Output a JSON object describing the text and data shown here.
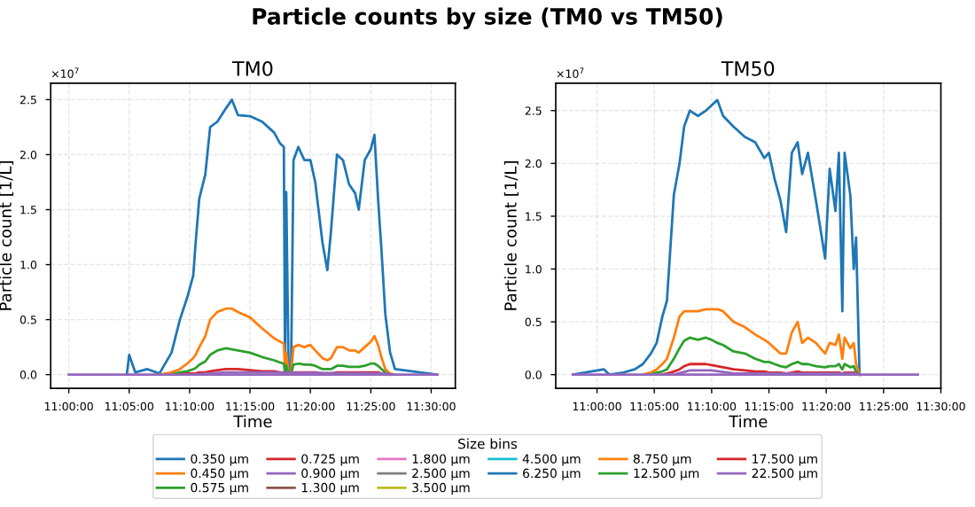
{
  "chart_data": [
    {
      "type": "line",
      "title": "TM0",
      "xlabel": "Time",
      "ylabel": "Particle count [1/L]",
      "legend_title": "Size bins",
      "legend": "bottom",
      "grid": true,
      "annotations": [
        "Particle counts by size (TM0 vs TM50)",
        "×10$^{7}$"
      ],
      "x": [
        11.08,
        11.0833,
        11.0917,
        11.1083,
        11.125,
        11.1417,
        11.1533,
        11.1633,
        11.1717,
        11.175,
        11.18,
        11.1883,
        11.195,
        11.205,
        11.2167,
        11.225,
        11.2333,
        11.25,
        11.2667,
        11.2833,
        11.2917,
        11.2967,
        11.2983,
        11.3,
        11.3033,
        11.3067,
        11.31,
        11.3167,
        11.325,
        11.3333,
        11.34,
        11.35,
        11.3567,
        11.3617,
        11.37,
        11.3783,
        11.3867,
        11.395,
        11.4,
        11.4083,
        11.4167,
        11.4217,
        11.4267,
        11.4317,
        11.4367,
        11.4433,
        11.45,
        11.5083
      ],
      "xlim": [
        10.975,
        11.5333
      ],
      "ylim": [
        -0.125,
        2.65
      ],
      "xticks": [
        {
          "value": 11.0,
          "label": "11:00:00"
        },
        {
          "value": 11.0833,
          "label": "11:05:00"
        },
        {
          "value": 11.1667,
          "label": "11:10:00"
        },
        {
          "value": 11.25,
          "label": "11:15:00"
        },
        {
          "value": 11.3333,
          "label": "11:20:00"
        },
        {
          "value": 11.4167,
          "label": "11:25:00"
        },
        {
          "value": 11.5,
          "label": "11:30:00"
        }
      ],
      "yticks": [
        {
          "value": 0,
          "label": "0.0"
        },
        {
          "value": 0.5,
          "label": "0.5"
        },
        {
          "value": 1,
          "label": "1.0"
        },
        {
          "value": 1.5,
          "label": "1.5"
        },
        {
          "value": 2,
          "label": "2.0"
        },
        {
          "value": 2.5,
          "label": "2.5"
        }
      ],
      "series": [
        {
          "name": "0.350 µm",
          "color": "#1f77b4",
          "values": [
            0,
            0.18,
            0.02,
            0.05,
            0.01,
            0.2,
            0.5,
            0.7,
            0.9,
            1.2,
            1.6,
            1.82,
            2.25,
            2.3,
            2.42,
            2.5,
            2.36,
            2.35,
            2.3,
            2.2,
            2.1,
            2.07,
            0.1,
            1.66,
            0,
            0.05,
            1.95,
            2.07,
            1.95,
            1.95,
            1.75,
            1.2,
            0.95,
            1.3,
            2.0,
            1.95,
            1.73,
            1.65,
            1.5,
            1.95,
            2.05,
            2.18,
            1.6,
            1.1,
            0.55,
            0.2,
            0.05,
            0
          ]
        },
        {
          "name": "0.450 µm",
          "color": "#ff7f0e",
          "values": [
            null,
            null,
            null,
            null,
            0,
            0.02,
            0.05,
            0.1,
            0.15,
            0.18,
            0.25,
            0.35,
            0.5,
            0.57,
            0.6,
            0.6,
            0.57,
            0.52,
            0.42,
            0.33,
            0.3,
            0.28,
            0.05,
            0.2,
            0,
            0.02,
            0.25,
            0.27,
            0.25,
            0.27,
            0.22,
            0.15,
            0.13,
            0.15,
            0.25,
            0.25,
            0.22,
            0.22,
            0.2,
            0.25,
            0.3,
            0.35,
            0.27,
            0.15,
            0.05,
            0.01,
            0,
            null
          ]
        },
        {
          "name": "0.575 µm",
          "color": "#2ca02c",
          "values": [
            null,
            null,
            null,
            null,
            null,
            0,
            0.02,
            0.03,
            0.05,
            0.06,
            0.09,
            0.12,
            0.18,
            0.22,
            0.24,
            0.23,
            0.22,
            0.2,
            0.16,
            0.13,
            0.11,
            0.1,
            0.02,
            0.08,
            0,
            0.01,
            0.09,
            0.1,
            0.09,
            0.09,
            0.08,
            0.05,
            0.05,
            0.05,
            0.08,
            0.08,
            0.07,
            0.07,
            0.07,
            0.08,
            0.1,
            0.1,
            0.08,
            0.05,
            0.02,
            0,
            null,
            null
          ]
        },
        {
          "name": "0.725 µm",
          "color": "#d62728",
          "values": [
            null,
            null,
            null,
            null,
            null,
            null,
            0,
            0.01,
            0.01,
            0.01,
            0.02,
            0.02,
            0.03,
            0.04,
            0.05,
            0.05,
            0.05,
            0.04,
            0.03,
            0.03,
            0.02,
            0.02,
            0,
            0.01,
            0,
            0,
            0.02,
            0.02,
            0.02,
            0.02,
            0.02,
            0.01,
            0.01,
            0.01,
            0.02,
            0.02,
            0.02,
            0.02,
            0.02,
            0.02,
            0.02,
            0.02,
            0.02,
            0.01,
            0,
            null,
            null,
            null
          ]
        },
        {
          "name": "0.900 µm",
          "color": "#9467bd",
          "x": [
            11.1717,
            11.2167,
            11.2667,
            11.4367,
            11.4433
          ],
          "values": [
            0,
            0.02,
            0.02,
            0.01,
            0
          ]
        },
        {
          "name": "1.300 µm",
          "color": "#8c564b",
          "values": [
            null,
            null,
            null,
            null,
            null,
            null,
            null,
            null,
            null,
            null,
            null,
            null,
            null,
            null,
            null,
            null,
            null,
            null,
            null,
            null,
            null,
            null,
            null,
            null,
            null,
            null,
            null,
            null,
            null,
            null,
            null,
            null,
            null,
            null,
            null,
            null,
            null,
            null,
            null,
            null,
            null,
            null,
            null,
            null,
            null,
            null,
            null,
            null
          ]
        },
        {
          "name": "1.800 µm",
          "color": "#e377c2",
          "values": [
            null,
            null,
            null,
            null,
            null,
            null,
            null,
            null,
            null,
            null,
            null,
            null,
            null,
            null,
            null,
            null,
            null,
            null,
            null,
            null,
            null,
            null,
            null,
            null,
            null,
            null,
            null,
            null,
            null,
            null,
            null,
            null,
            null,
            null,
            null,
            null,
            null,
            null,
            null,
            null,
            null,
            null,
            null,
            null,
            null,
            null,
            null,
            null
          ]
        },
        {
          "name": "2.500 µm",
          "color": "#7f7f7f",
          "values": [
            null,
            null,
            null,
            null,
            null,
            null,
            null,
            null,
            null,
            null,
            null,
            null,
            null,
            null,
            null,
            null,
            null,
            null,
            null,
            null,
            null,
            null,
            null,
            null,
            null,
            null,
            null,
            null,
            null,
            null,
            null,
            null,
            null,
            null,
            null,
            null,
            null,
            null,
            null,
            null,
            null,
            null,
            null,
            null,
            null,
            null,
            null,
            null
          ]
        },
        {
          "name": "3.500 µm",
          "color": "#bcbd22",
          "values": [
            null,
            null,
            null,
            null,
            null,
            null,
            null,
            null,
            null,
            null,
            null,
            null,
            null,
            null,
            null,
            null,
            null,
            null,
            null,
            null,
            null,
            null,
            null,
            null,
            null,
            null,
            null,
            null,
            null,
            null,
            null,
            null,
            null,
            null,
            null,
            null,
            null,
            null,
            null,
            null,
            null,
            null,
            null,
            null,
            null,
            null,
            null,
            null
          ]
        },
        {
          "name": "4.500 µm",
          "color": "#17becf",
          "values": [
            null,
            null,
            null,
            null,
            null,
            null,
            null,
            null,
            null,
            null,
            null,
            null,
            null,
            null,
            null,
            null,
            null,
            null,
            null,
            null,
            null,
            null,
            null,
            null,
            null,
            null,
            null,
            null,
            null,
            null,
            null,
            null,
            null,
            null,
            null,
            null,
            null,
            null,
            null,
            null,
            null,
            null,
            null,
            null,
            null,
            null,
            null,
            null
          ]
        },
        {
          "name": "6.250 µm",
          "color": "#1f77b4",
          "values": [
            null,
            null,
            null,
            null,
            null,
            null,
            null,
            null,
            null,
            null,
            null,
            null,
            null,
            null,
            null,
            null,
            null,
            null,
            null,
            null,
            null,
            null,
            null,
            null,
            null,
            null,
            null,
            null,
            null,
            null,
            null,
            null,
            null,
            null,
            null,
            null,
            null,
            null,
            null,
            null,
            null,
            null,
            null,
            null,
            null,
            null,
            null,
            null
          ]
        },
        {
          "name": "8.750 µm",
          "color": "#ff7f0e",
          "values": [
            null,
            null,
            null,
            null,
            null,
            null,
            null,
            null,
            null,
            null,
            null,
            null,
            null,
            null,
            null,
            null,
            null,
            null,
            null,
            null,
            null,
            null,
            null,
            null,
            null,
            null,
            null,
            null,
            null,
            null,
            null,
            null,
            null,
            null,
            null,
            null,
            null,
            null,
            null,
            null,
            null,
            null,
            null,
            null,
            null,
            null,
            null,
            null
          ]
        },
        {
          "name": "12.500 µm",
          "color": "#2ca02c",
          "values": [
            null,
            null,
            null,
            null,
            null,
            null,
            null,
            null,
            null,
            null,
            null,
            null,
            null,
            null,
            null,
            null,
            null,
            null,
            null,
            null,
            null,
            null,
            null,
            null,
            null,
            null,
            null,
            null,
            null,
            null,
            null,
            null,
            null,
            null,
            null,
            null,
            null,
            null,
            null,
            null,
            null,
            null,
            null,
            null,
            null,
            null,
            null,
            null
          ]
        },
        {
          "name": "17.500 µm",
          "color": "#d62728",
          "values": [
            null,
            null,
            null,
            null,
            null,
            null,
            null,
            null,
            null,
            null,
            null,
            null,
            null,
            null,
            null,
            null,
            null,
            null,
            null,
            null,
            null,
            null,
            null,
            null,
            null,
            null,
            null,
            null,
            null,
            null,
            null,
            null,
            null,
            null,
            null,
            null,
            null,
            null,
            null,
            null,
            null,
            null,
            null,
            null,
            null,
            null,
            null,
            null
          ]
        },
        {
          "name": "22.500 µm",
          "color": "#9467bd",
          "x": [
            11.0,
            11.5083
          ],
          "values": [
            0,
            0
          ]
        }
      ]
    },
    {
      "type": "line",
      "title": "TM50",
      "xlabel": "Time",
      "ylabel": "Particle count [1/L]",
      "grid": true,
      "annotations": [
        "×10$^{7}$"
      ],
      "x": [
        10.965,
        11.01,
        11.0183,
        11.0383,
        11.055,
        11.0667,
        11.0783,
        11.0867,
        11.095,
        11.1017,
        11.1067,
        11.1117,
        11.12,
        11.1267,
        11.135,
        11.1467,
        11.1583,
        11.1667,
        11.175,
        11.1833,
        11.1983,
        11.215,
        11.23,
        11.2433,
        11.25,
        11.2583,
        11.2667,
        11.275,
        11.2833,
        11.2917,
        11.2983,
        11.3067,
        11.3183,
        11.3317,
        11.3383,
        11.3467,
        11.3517,
        11.3567,
        11.36,
        11.3683,
        11.3733,
        11.3767,
        11.3817
      ],
      "xlim": [
        10.94,
        11.5
      ],
      "ylim": [
        -0.13,
        2.76
      ],
      "xticks": [
        {
          "value": 11.0,
          "label": "11:00:00"
        },
        {
          "value": 11.0833,
          "label": "11:05:00"
        },
        {
          "value": 11.1667,
          "label": "11:10:00"
        },
        {
          "value": 11.25,
          "label": "11:15:00"
        },
        {
          "value": 11.3333,
          "label": "11:20:00"
        },
        {
          "value": 11.4167,
          "label": "11:25:00"
        },
        {
          "value": 11.5,
          "label": "11:30:00"
        }
      ],
      "yticks": [
        {
          "value": 0,
          "label": "0.0"
        },
        {
          "value": 0.5,
          "label": "0.5"
        },
        {
          "value": 1,
          "label": "1.0"
        },
        {
          "value": 1.5,
          "label": "1.5"
        },
        {
          "value": 2,
          "label": "2.0"
        },
        {
          "value": 2.5,
          "label": "2.5"
        }
      ],
      "series": [
        {
          "color": "#1f77b4",
          "values": [
            0,
            0.05,
            0,
            0.02,
            0.05,
            0.1,
            0.2,
            0.3,
            0.55,
            0.7,
            1.2,
            1.7,
            2.0,
            2.35,
            2.5,
            2.45,
            2.5,
            2.55,
            2.6,
            2.45,
            2.35,
            2.25,
            2.2,
            2.05,
            2.1,
            1.85,
            1.65,
            1.35,
            2.1,
            2.2,
            1.9,
            2.1,
            1.65,
            1.1,
            1.95,
            1.55,
            2.1,
            0.6,
            2.1,
            1.7,
            1.0,
            1.3,
            0
          ]
        },
        {
          "color": "#ff7f0e",
          "values": [
            null,
            null,
            null,
            null,
            null,
            0,
            0.02,
            0.05,
            0.1,
            0.15,
            0.25,
            0.35,
            0.55,
            0.6,
            0.6,
            0.6,
            0.62,
            0.62,
            0.62,
            0.6,
            0.5,
            0.45,
            0.38,
            0.33,
            0.3,
            0.25,
            0.2,
            0.2,
            0.4,
            0.5,
            0.3,
            0.35,
            0.3,
            0.2,
            0.3,
            0.28,
            0.38,
            0.15,
            0.35,
            0.25,
            0.3,
            0.1,
            0
          ]
        },
        {
          "color": "#2ca02c",
          "values": [
            null,
            null,
            null,
            null,
            null,
            null,
            0,
            0.02,
            0.03,
            0.05,
            0.1,
            0.15,
            0.25,
            0.32,
            0.35,
            0.33,
            0.35,
            0.33,
            0.3,
            0.28,
            0.22,
            0.2,
            0.15,
            0.12,
            0.12,
            0.1,
            0.08,
            0.07,
            0.1,
            0.12,
            0.1,
            0.1,
            0.08,
            0.07,
            0.08,
            0.08,
            0.1,
            0.05,
            0.1,
            0.07,
            0.08,
            0.03,
            0
          ]
        },
        {
          "color": "#d62728",
          "values": [
            null,
            null,
            null,
            null,
            null,
            null,
            null,
            null,
            0,
            0.01,
            0.02,
            0.03,
            0.05,
            0.08,
            0.1,
            0.1,
            0.1,
            0.09,
            0.08,
            0.07,
            0.05,
            0.04,
            0.03,
            0.03,
            0.02,
            0.02,
            0.02,
            0.01,
            0.02,
            0.03,
            0.02,
            0.02,
            0.02,
            0.02,
            0.02,
            0.02,
            0.02,
            0.01,
            0.02,
            0.02,
            0.02,
            0.01,
            0
          ]
        },
        {
          "color": "#9467bd",
          "x": [
            11.1117,
            11.135,
            11.1667,
            11.2,
            11.375,
            11.3817
          ],
          "values": [
            0,
            0.04,
            0.04,
            0.01,
            0.01,
            0
          ]
        },
        {
          "color": "#9467bd",
          "x": [
            10.965,
            11.4667
          ],
          "values": [
            0,
            0
          ]
        }
      ]
    }
  ]
}
